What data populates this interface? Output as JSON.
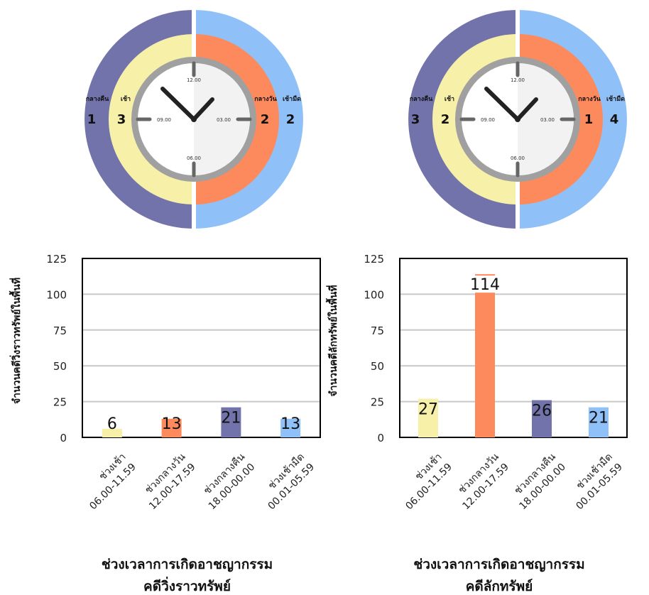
{
  "colors": {
    "morning": "#f7f0a8",
    "day": "#fd8a5c",
    "night": "#7373ab",
    "dawn": "#8fc0f7",
    "clock_ring": "#a0a0a0",
    "clock_face": "#f2f2f2",
    "hands": "#222222",
    "ticks": "#666666",
    "grid": "#c8c8c8",
    "axis": "#000000"
  },
  "clocks": [
    {
      "id": "theft",
      "night_label": "กลางคืน",
      "night_rank": "1",
      "morning_label": "เช้า",
      "morning_rank": "3",
      "day_label": "กลางวัน",
      "day_rank": "2",
      "dawn_label": "เช้ามืด",
      "dawn_rank": "2",
      "hours": [
        "12.00",
        "03.00",
        "06.00",
        "09.00"
      ]
    },
    {
      "id": "burglary",
      "night_label": "กลางคืน",
      "night_rank": "3",
      "morning_label": "เช้า",
      "morning_rank": "2",
      "day_label": "กลางวัน",
      "day_rank": "1",
      "dawn_label": "เช้ามืด",
      "dawn_rank": "4",
      "hours": [
        "12.00",
        "03.00",
        "06.00",
        "09.00"
      ]
    }
  ],
  "chart_data": [
    {
      "type": "bar",
      "title": "ช่วงเวลาการเกิดอาชญากรรม\nคดีวิ่งราวทรัพย์",
      "ylabel": "จำนวนคดีวิ่งราวทรัพย์ในพื้นที่",
      "xlabel": "",
      "ylim": [
        0,
        125
      ],
      "yticks": [
        0,
        25,
        50,
        75,
        100,
        125
      ],
      "grid": true,
      "categories": [
        "ช่วงเช้า\n06.00-11.59",
        "ช่วงกลางวัน\n12.00-17.59",
        "ช่วงกลางคืน\n18.00-00.00",
        "ช่วงเช้ามืด\n00.01-05.59"
      ],
      "values": [
        6,
        13,
        21,
        13
      ],
      "colors": [
        "#f7f0a8",
        "#fd8a5c",
        "#7373ab",
        "#8fc0f7"
      ]
    },
    {
      "type": "bar",
      "title": "ช่วงเวลาการเกิดอาชญากรรม\nคดีลักทรัพย์",
      "ylabel": "จำนวนคดีลักทรัพย์ในพื้นที่",
      "xlabel": "",
      "ylim": [
        0,
        125
      ],
      "yticks": [
        0,
        25,
        50,
        75,
        100,
        125
      ],
      "grid": true,
      "categories": [
        "ช่วงเช้า\n06.00-11.59",
        "ช่วงกลางวัน\n12.00-17.59",
        "ช่วงกลางคืน\n18.00-00.00",
        "ช่วงเช้ามืด\n00.01-05.59"
      ],
      "values": [
        27,
        114,
        26,
        21
      ],
      "colors": [
        "#f7f0a8",
        "#fd8a5c",
        "#7373ab",
        "#8fc0f7"
      ]
    }
  ]
}
